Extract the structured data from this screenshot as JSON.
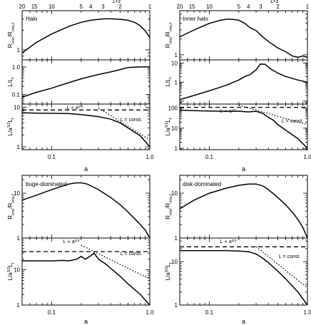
{
  "chart_data": [
    {
      "type": "line",
      "panel_group": "Halo",
      "top_axis_label": "1+z",
      "top_axis_ticks": [
        "20",
        "15",
        "10",
        "5",
        "4",
        "3",
        "2",
        "1"
      ],
      "x_axis": {
        "label": "a",
        "scale": "log",
        "range": [
          0.05,
          1.0
        ],
        "tick_labels": [
          "0.1",
          "1.0"
        ]
      },
      "panels": [
        {
          "title": "Halo",
          "ylabel": "R_rms/R_rms,f",
          "yscale": "log",
          "ylim": [
            0.7,
            4.0
          ],
          "tick_labels": [
            "1"
          ],
          "series": [
            {
              "style": "solid",
              "x": [
                0.05,
                0.07,
                0.1,
                0.15,
                0.2,
                0.25,
                0.3,
                0.35,
                0.4,
                0.5,
                0.6,
                0.7,
                0.8,
                0.9,
                1.0
              ],
              "y": [
                0.9,
                1.3,
                1.75,
                2.3,
                2.65,
                2.85,
                2.95,
                3.0,
                3.0,
                2.95,
                2.85,
                2.65,
                2.35,
                1.95,
                1.55
              ]
            }
          ]
        },
        {
          "ylabel": "L/L_f",
          "yscale": "log",
          "ylim": [
            0.045,
            1.8
          ],
          "tick_labels": [
            "0.1",
            "1.0"
          ],
          "series": [
            {
              "style": "solid",
              "x": [
                0.05,
                0.07,
                0.1,
                0.15,
                0.2,
                0.3,
                0.4,
                0.5,
                0.6,
                0.8,
                1.0
              ],
              "y": [
                0.08,
                0.12,
                0.17,
                0.27,
                0.37,
                0.53,
                0.66,
                0.8,
                0.95,
                1.0,
                1.0
              ]
            }
          ]
        },
        {
          "ylabel": "L/a^(3/2)L_f",
          "yscale": "log",
          "ylim": [
            0.85,
            12.0
          ],
          "tick_labels": [
            "1",
            "10"
          ],
          "annotations": [
            "L ∝ a^(3/2)",
            "L = const."
          ],
          "series": [
            {
              "style": "solid",
              "x": [
                0.05,
                0.07,
                0.1,
                0.15,
                0.2,
                0.3,
                0.4,
                0.5,
                0.6,
                0.8,
                1.0
              ],
              "y": [
                7.2,
                7.1,
                7.0,
                6.9,
                6.5,
                5.8,
                5.0,
                4.0,
                3.0,
                1.9,
                1.0
              ]
            },
            {
              "style": "dashed",
              "label": "L ∝ a^(3/2)",
              "x": [
                0.05,
                1.0
              ],
              "y": [
                8.5,
                8.5
              ]
            },
            {
              "style": "dotted",
              "label": "L = const.",
              "x": [
                0.3,
                1.0
              ],
              "y": [
                9.5,
                1.5
              ]
            }
          ]
        }
      ]
    },
    {
      "type": "line",
      "panel_group": "Inner halo",
      "top_axis_label": "1+z",
      "top_axis_ticks": [
        "20",
        "15",
        "10",
        "5",
        "4",
        "3",
        "2",
        "1"
      ],
      "x_axis": {
        "label": "a",
        "scale": "log",
        "range": [
          0.05,
          1.0
        ],
        "tick_labels": [
          "0.1",
          "1.0"
        ]
      },
      "panels": [
        {
          "title": "Inner halo",
          "ylabel": "R_rms/R_rms,f",
          "yscale": "log",
          "ylim": [
            0.8,
            7.0
          ],
          "tick_labels": [
            "1"
          ],
          "series": [
            {
              "style": "solid",
              "x": [
                0.05,
                0.07,
                0.1,
                0.13,
                0.15,
                0.17,
                0.2,
                0.23,
                0.26,
                0.3,
                0.35,
                0.4,
                0.5,
                0.6,
                0.7,
                0.8,
                0.9,
                1.0
              ],
              "y": [
                2.2,
                3.0,
                4.0,
                4.6,
                4.8,
                4.8,
                4.6,
                4.0,
                3.3,
                2.9,
                2.2,
                1.8,
                1.35,
                1.15,
                0.95,
                0.9,
                0.95,
                0.9
              ]
            }
          ]
        },
        {
          "ylabel": "L/L_f",
          "yscale": "log",
          "ylim": [
            0.07,
            15.0
          ],
          "tick_labels": [
            "1",
            "10"
          ],
          "series": [
            {
              "style": "solid",
              "x": [
                0.05,
                0.07,
                0.1,
                0.15,
                0.2,
                0.23,
                0.26,
                0.3,
                0.33,
                0.37,
                0.42,
                0.5,
                0.6,
                0.8,
                1.0
              ],
              "y": [
                0.12,
                0.2,
                0.35,
                0.7,
                1.3,
                2.0,
                2.5,
                4.5,
                9.0,
                8.8,
                5.0,
                3.0,
                2.0,
                1.3,
                1.0
              ]
            }
          ]
        },
        {
          "ylabel": "L/a^(3/2)L_f",
          "yscale": "log",
          "ylim": [
            0.85,
            160.0
          ],
          "tick_labels": [
            "1",
            "10",
            "100"
          ],
          "annotations": [
            "L ∝ a^(3/2)",
            "L = const."
          ],
          "series": [
            {
              "style": "solid",
              "x": [
                0.05,
                0.07,
                0.1,
                0.15,
                0.2,
                0.25,
                0.3,
                0.35,
                0.4,
                0.45,
                0.5,
                0.6,
                0.8,
                1.0
              ],
              "y": [
                80,
                75,
                72,
                70,
                70,
                65,
                70,
                55,
                35,
                25,
                15,
                8,
                3,
                1.0
              ]
            },
            {
              "style": "dashed",
              "label": "L ∝ a^(3/2)",
              "x": [
                0.05,
                1.0
              ],
              "y": [
                110,
                110
              ]
            },
            {
              "style": "dotted",
              "label": "L = const.",
              "x": [
                0.2,
                1.0
              ],
              "y": [
                140,
                15
              ]
            }
          ]
        }
      ]
    },
    {
      "type": "line",
      "panel_group": "bulge-dominated",
      "x_axis": {
        "label": "a",
        "scale": "log",
        "range": [
          0.05,
          1.0
        ],
        "tick_labels": [
          "0.1",
          "1.0"
        ]
      },
      "panels": [
        {
          "title": "buge-dominated",
          "ylabel": "R_rms/R_rms,f",
          "yscale": "log",
          "ylim": [
            1.0,
            25.0
          ],
          "tick_labels": [
            "1",
            "10"
          ],
          "series": [
            {
              "style": "solid",
              "x": [
                0.05,
                0.07,
                0.1,
                0.13,
                0.15,
                0.18,
                0.2,
                0.23,
                0.3,
                0.4,
                0.5,
                0.6,
                0.7,
                0.8,
                0.9,
                1.0
              ],
              "y": [
                7.0,
                9.0,
                12.0,
                14.5,
                16.0,
                17.0,
                17.0,
                16.0,
                12.0,
                8.0,
                5.5,
                3.8,
                2.7,
                2.0,
                1.5,
                1.0
              ]
            }
          ]
        },
        {
          "ylabel": "L/a^(3/2)L_f",
          "yscale": "log",
          "ylim": [
            1.0,
            80.0
          ],
          "tick_labels": [
            "1",
            "10"
          ],
          "annotations": [
            "L ∝ a^(3/2)",
            "L = const."
          ],
          "series": [
            {
              "style": "solid",
              "x": [
                0.05,
                0.07,
                0.1,
                0.13,
                0.15,
                0.18,
                0.2,
                0.22,
                0.25,
                0.27,
                0.3,
                0.35,
                0.4,
                0.5,
                0.6,
                0.8,
                1.0
              ],
              "y": [
                18,
                18,
                18,
                18.5,
                18,
                20,
                24,
                20,
                25,
                30,
                20,
                15,
                11,
                6.5,
                4.0,
                2.0,
                1.0
              ]
            },
            {
              "style": "dashed",
              "label": "L ∝ a^(3/2)",
              "x": [
                0.05,
                1.0
              ],
              "y": [
                33,
                33
              ]
            },
            {
              "style": "dotted",
              "label": "L = const.",
              "x": [
                0.2,
                1.0
              ],
              "y": [
                50,
                5.5
              ]
            }
          ]
        }
      ]
    },
    {
      "type": "line",
      "panel_group": "disk-dominated",
      "x_axis": {
        "label": "a",
        "scale": "log",
        "range": [
          0.05,
          1.0
        ],
        "tick_labels": [
          "0.1",
          "1.0"
        ]
      },
      "panels": [
        {
          "title": "disk-dominated",
          "ylabel": "R_rms/R_rms,f",
          "yscale": "log",
          "ylim": [
            1.0,
            25.0
          ],
          "tick_labels": [
            "1",
            "10"
          ],
          "series": [
            {
              "style": "solid",
              "x": [
                0.05,
                0.07,
                0.1,
                0.15,
                0.2,
                0.25,
                0.3,
                0.35,
                0.4,
                0.5,
                0.6,
                0.7,
                0.8,
                0.9,
                1.0
              ],
              "y": [
                4.5,
                7.0,
                10.0,
                13.0,
                15.0,
                16.0,
                16.0,
                14.5,
                12.0,
                8.0,
                5.5,
                3.8,
                2.6,
                1.7,
                1.0
              ]
            }
          ]
        },
        {
          "ylabel": "L/a^(3/2)L_f",
          "yscale": "log",
          "ylim": [
            1.0,
            35.0
          ],
          "tick_labels": [
            "1",
            "10"
          ],
          "annotations": [
            "L ∝ a^(3/2)",
            "L = const."
          ],
          "series": [
            {
              "style": "solid",
              "x": [
                0.05,
                0.07,
                0.1,
                0.15,
                0.2,
                0.25,
                0.3,
                0.35,
                0.4,
                0.5,
                0.6,
                0.8,
                1.0
              ],
              "y": [
                18,
                18,
                18,
                18,
                17.5,
                17,
                15,
                12,
                9.5,
                6.0,
                4.0,
                2.0,
                1.0
              ]
            },
            {
              "style": "dashed",
              "label": "L ∝ a^(3/2)",
              "x": [
                0.05,
                1.0
              ],
              "y": [
                22,
                22
              ]
            },
            {
              "style": "dotted",
              "label": "L = const.",
              "x": [
                0.3,
                1.0
              ],
              "y": [
                22,
                2.5
              ]
            }
          ]
        }
      ]
    }
  ]
}
